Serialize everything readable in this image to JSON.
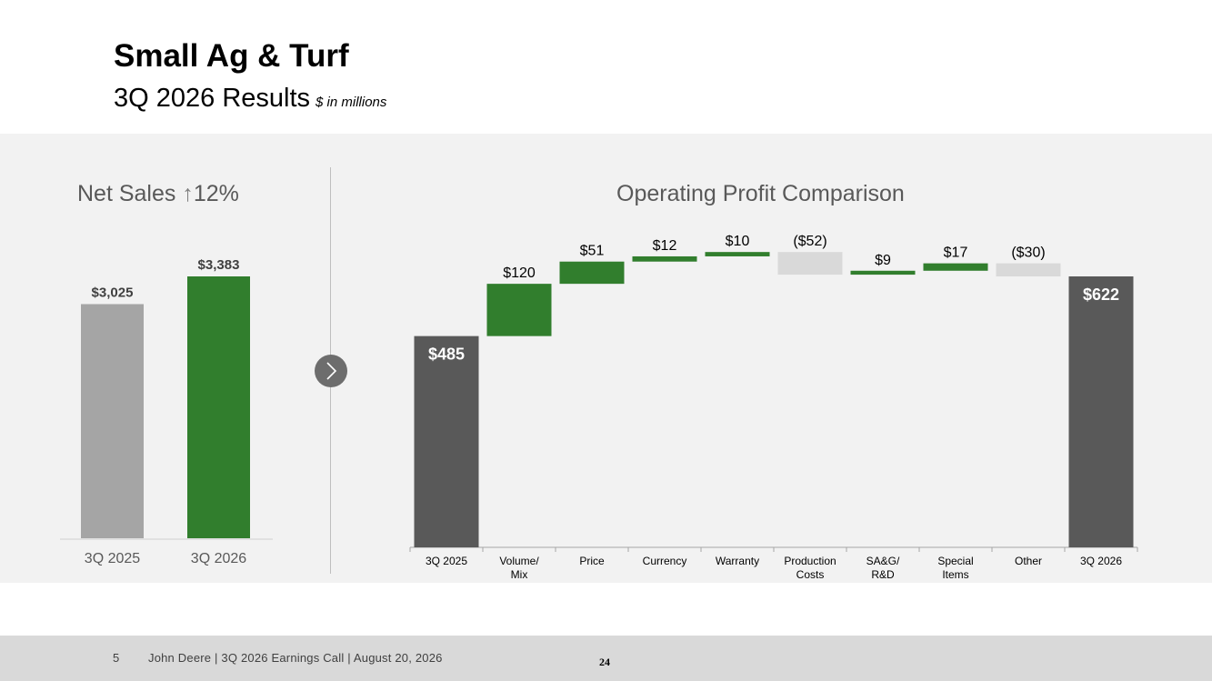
{
  "header": {
    "title": "Small Ag & Turf",
    "subtitle": "3Q 2026 Results",
    "units": "$ in millions"
  },
  "net_sales_title": {
    "label": "Net Sales",
    "arrow": "↑",
    "change": "12%"
  },
  "operating_profit_title": "Operating Profit Comparison",
  "footer": {
    "slide_number": "5",
    "text": "John Deere | 3Q 2026 Earnings Call | August 20, 2026",
    "page": "24"
  },
  "colors": {
    "green": "#317e2d",
    "dark_gray": "#595959",
    "mid_gray": "#a5a5a5",
    "light_gray": "#d9d9d9",
    "band": "#f2f2f2"
  },
  "icons": [
    "chevron-right-icon",
    "up-arrow-icon"
  ],
  "chart_data": [
    {
      "type": "bar",
      "title": "Net Sales ↑12%",
      "categories": [
        "3Q 2025",
        "3Q 2026"
      ],
      "values": [
        3025,
        3383
      ],
      "labels": [
        "$3,025",
        "$3,383"
      ],
      "colors": [
        "#a5a5a5",
        "#317e2d"
      ],
      "ylim": [
        0,
        3383
      ]
    },
    {
      "type": "waterfall",
      "title": "Operating Profit Comparison",
      "categories": [
        "3Q 2025",
        "Volume/\nMix",
        "Price",
        "Currency",
        "Warranty",
        "Production\nCosts",
        "SA&G/\nR&D",
        "Special\nItems",
        "Other",
        "3Q 2026"
      ],
      "values": [
        485,
        120,
        51,
        12,
        10,
        -52,
        9,
        17,
        -30,
        622
      ],
      "labels": [
        "$485",
        "$120",
        "$51",
        "$12",
        "$10",
        "($52)",
        "$9",
        "$17",
        "($30)",
        "$622"
      ],
      "kinds": [
        "total",
        "delta",
        "delta",
        "delta",
        "delta",
        "delta",
        "delta",
        "delta",
        "delta",
        "total"
      ],
      "ylim": [
        0,
        705
      ]
    }
  ]
}
